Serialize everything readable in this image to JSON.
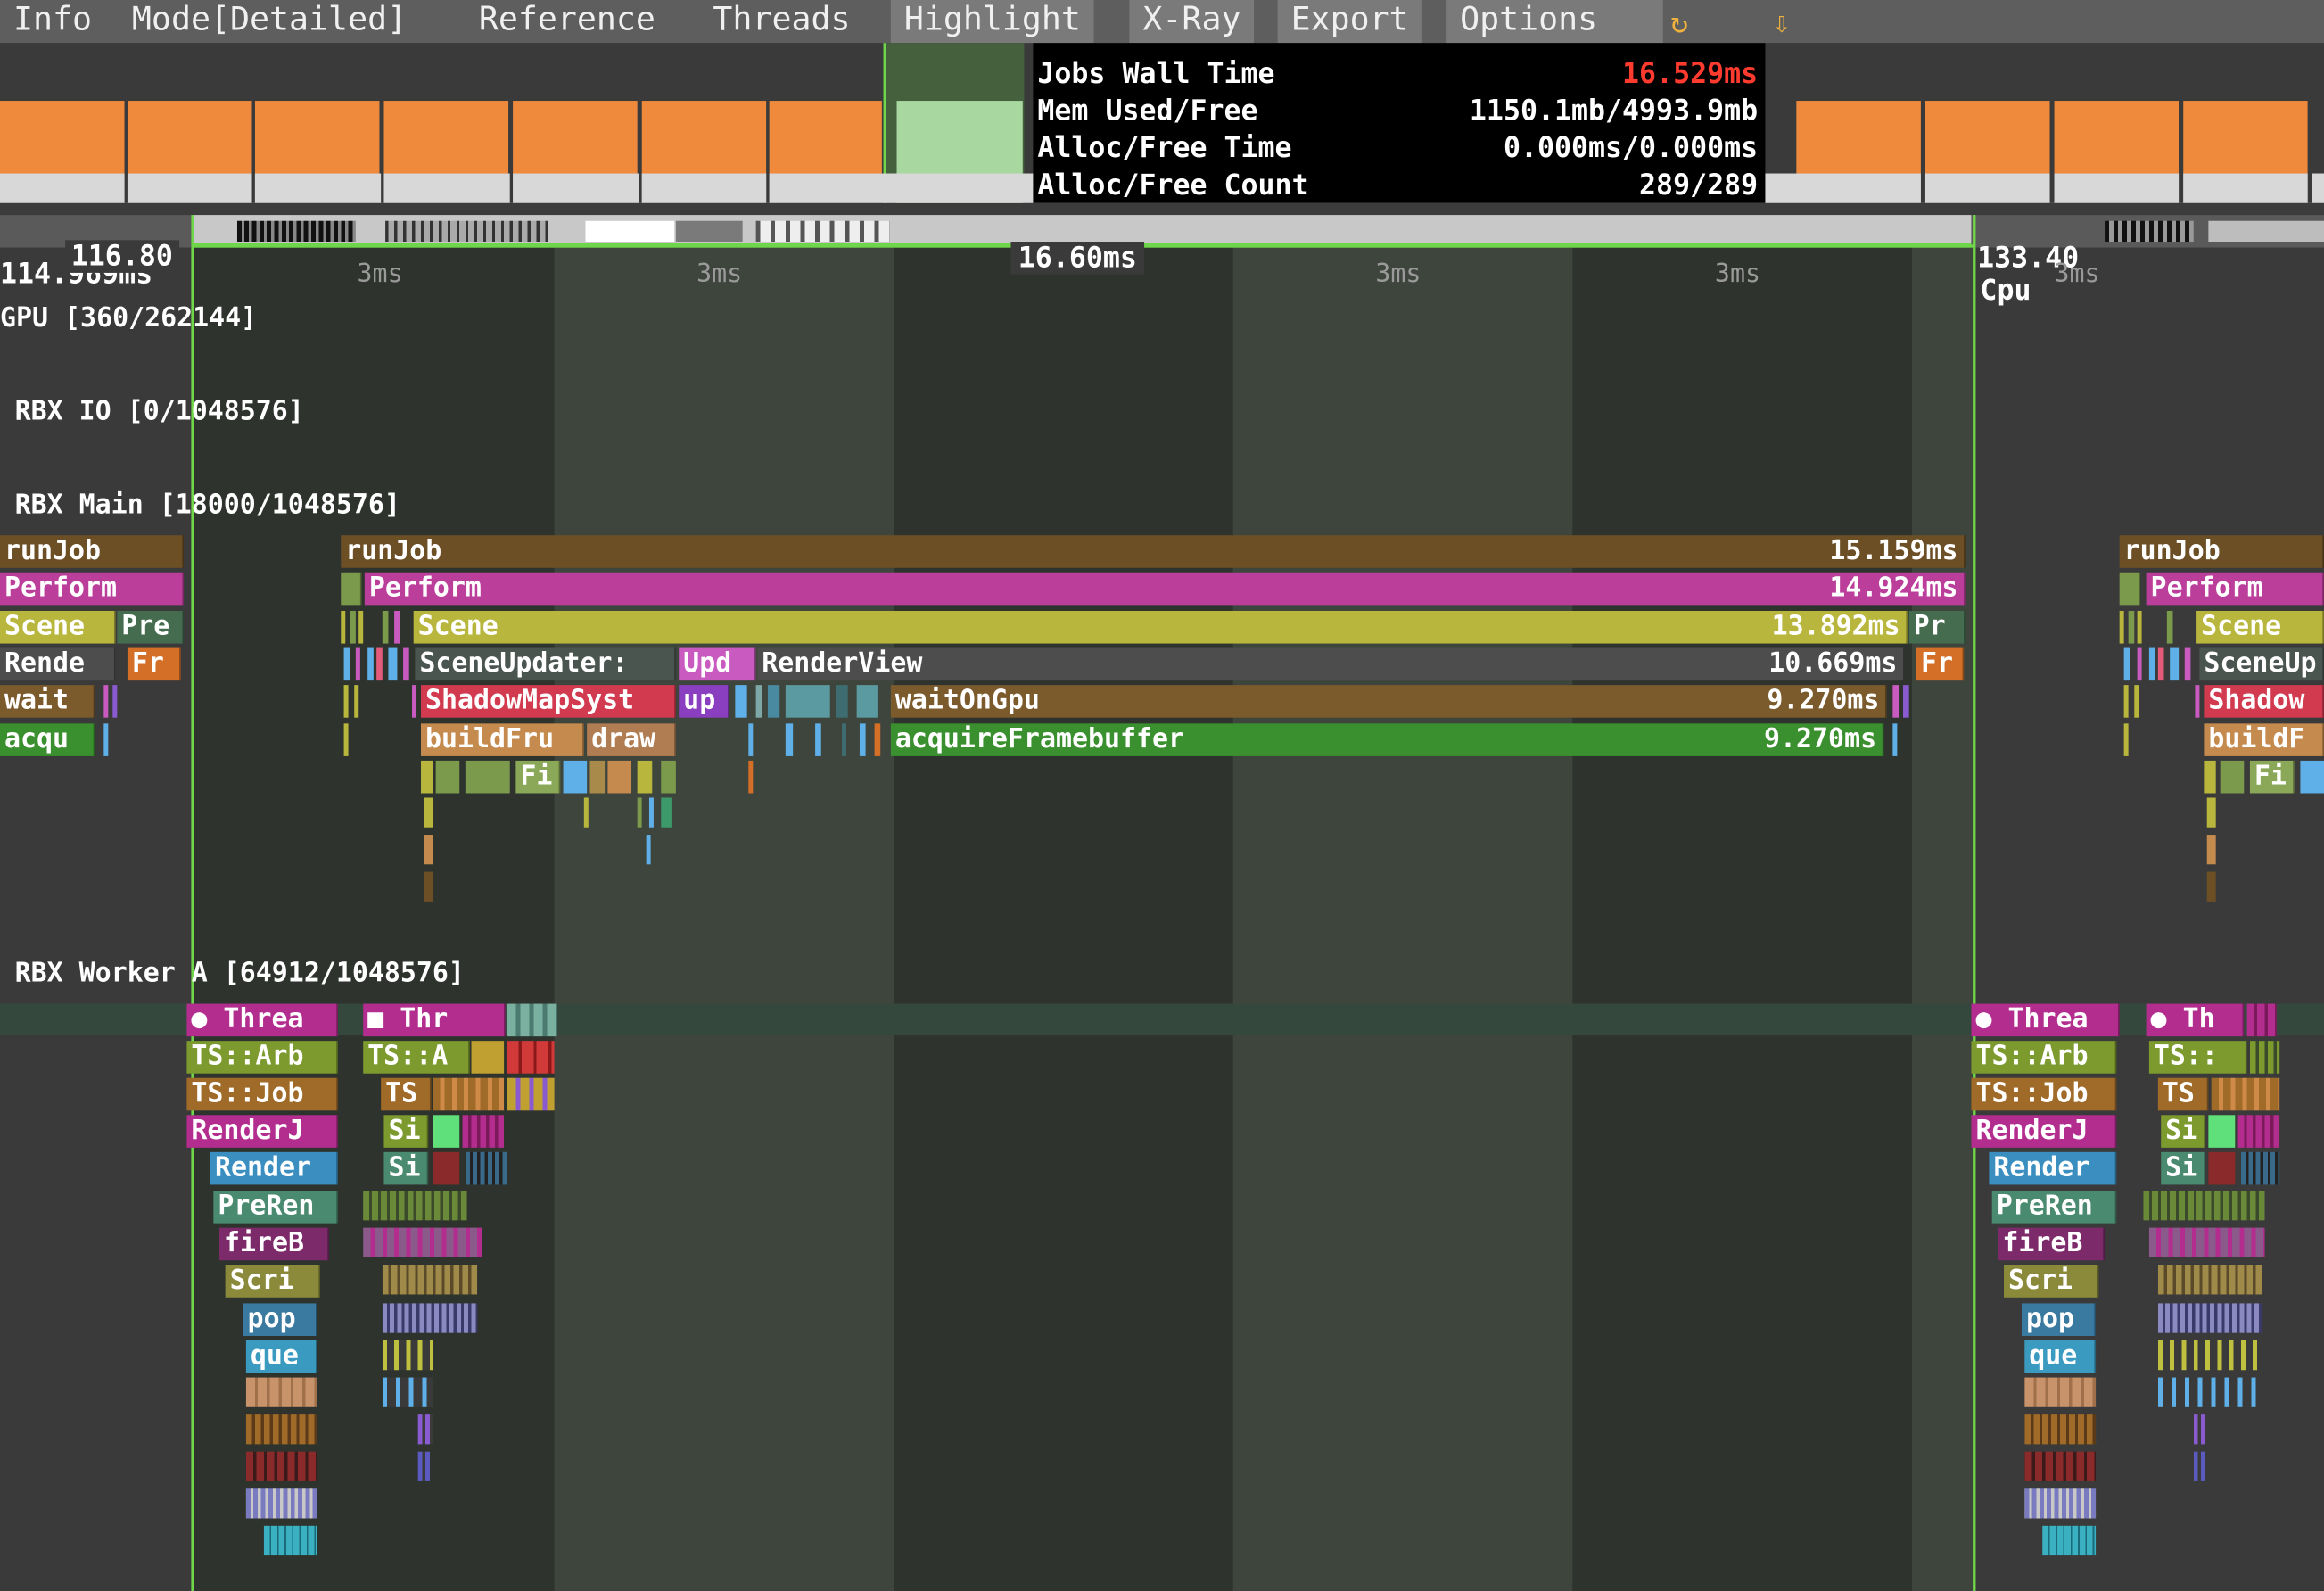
{
  "menu": [
    {
      "label": "Info"
    },
    {
      "label": "Mode[Detailed]"
    },
    {
      "label": "Reference"
    },
    {
      "label": "Threads"
    },
    {
      "label": "Highlight",
      "active": true
    },
    {
      "label": "X-Ray",
      "active": true
    },
    {
      "label": "Export",
      "active": true
    },
    {
      "label": "Options",
      "active": true
    }
  ],
  "menu_icons": {
    "refresh": "refresh-icon",
    "download": "download-arrow-icon"
  },
  "refresh_glyph": "↻",
  "download_glyph": "⇩",
  "frame_info": [
    {
      "label": "Jobs Wall Time",
      "value": "16.529ms",
      "value_color": "#ff3b30"
    },
    {
      "label": "Mem Used/Free",
      "value": "1150.1mb/4993.9mb"
    },
    {
      "label": "Alloc/Free Time",
      "value": "0.000ms/0.000ms"
    },
    {
      "label": "Alloc/Free Count",
      "value": "289/289"
    }
  ],
  "timeline": {
    "left_time_back": "114.969ms",
    "left_time": "116.80",
    "frame_length": "16.60ms",
    "right_time": "133.40",
    "right_sub": "Cpu",
    "tick_label": "3ms"
  },
  "threads": [
    {
      "name": "GPU [360/262144]"
    },
    {
      "name": "RBX IO [0/1048576]"
    },
    {
      "name": "RBX Main [18000/1048576]"
    },
    {
      "name": "RBX Worker A [64912/1048576]"
    }
  ],
  "main_left_blocks": [
    "runJob",
    "Perform",
    "Scene",
    "Pre",
    "Rende",
    "Fr",
    "wait",
    "acqu"
  ],
  "main_blocks": [
    {
      "label": "runJob",
      "duration": "15.159ms"
    },
    {
      "label": "Perform",
      "duration": "14.924ms"
    },
    {
      "label": "Scene",
      "duration": "13.892ms"
    },
    {
      "label": "Pr"
    },
    {
      "label": "SceneUpdater:"
    },
    {
      "label": "Upd"
    },
    {
      "label": "RenderView",
      "duration": "10.669ms"
    },
    {
      "label": "Fr"
    },
    {
      "label": "ShadowMapSyst"
    },
    {
      "label": "up"
    },
    {
      "label": "waitOnGpu",
      "duration": "9.270ms"
    },
    {
      "label": "buildFru"
    },
    {
      "label": "draw"
    },
    {
      "label": "acquireFramebuffer",
      "duration": "9.270ms"
    },
    {
      "label": "Fi"
    }
  ],
  "main_right_blocks": [
    "runJob",
    "Perform",
    "Scene",
    "SceneUp",
    "Shadow",
    "buildF",
    "Fi"
  ],
  "worker_blocks_a": [
    "● Threa",
    "TS::Arb",
    "TS::Job",
    "RenderJ",
    "Render",
    "PreRen",
    "fireB",
    "Scri",
    "pop",
    "que"
  ],
  "worker_blocks_b": [
    "■ Thr",
    "TS::A",
    "TS",
    "Si",
    "Si"
  ],
  "worker_blocks_c": [
    "● Threa",
    "TS::Arb",
    "TS::Job",
    "RenderJ",
    "Render",
    "PreRen",
    "fireB",
    "Scri",
    "pop",
    "que"
  ],
  "worker_blocks_d": [
    "● Th",
    "TS::",
    "TS",
    "Si",
    "Si"
  ],
  "colors": {
    "frame_orange": "#ef8a3c",
    "selected_frame": "#a8d8a0",
    "selection_line": "#6fd64a"
  }
}
